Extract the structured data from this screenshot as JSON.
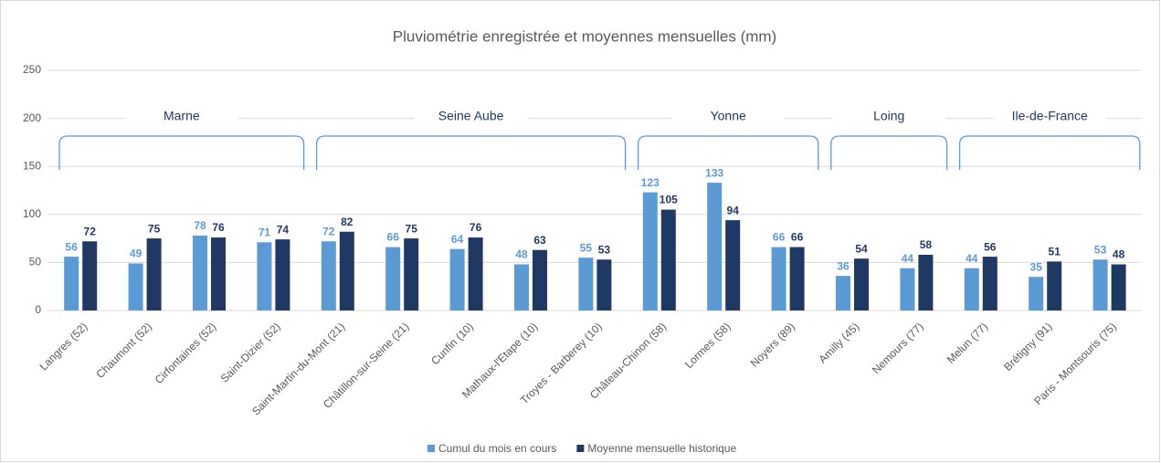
{
  "chart_data": {
    "type": "bar",
    "title": "Pluviométrie enregistrée et moyennes mensuelles (mm)",
    "categories": [
      "Langres (52)",
      "Chaumont (52)",
      "Cirfontaines (52)",
      "Saint-Dizier (52)",
      "Saint-Martin-du-Mont (21)",
      "Châtillon-sur-Seine (21)",
      "Cunfin (10)",
      "Mathaux-l'Etape (10)",
      "Troyes - Barberey (10)",
      "Château-Chinon (58)",
      "Lormes (58)",
      "Noyers (89)",
      "Amilly (45)",
      "Nemours (77)",
      "Melun (77)",
      "Brétigny (91)",
      "Paris - Montsouris (75)"
    ],
    "groups": [
      "Marne",
      "Seine Aube",
      "Yonne",
      "Loing",
      "Ile-de-France"
    ],
    "series": [
      {
        "name": "Cumul du mois en cours",
        "color": "#5b9bd5",
        "values": [
          56,
          49,
          78,
          71,
          72,
          66,
          64,
          48,
          55,
          123,
          133,
          66,
          36,
          44,
          44,
          35,
          53
        ]
      },
      {
        "name": "Moyenne mensuelle historique",
        "color": "#1f3864",
        "values": [
          72,
          75,
          76,
          74,
          82,
          75,
          76,
          63,
          53,
          105,
          94,
          66,
          54,
          58,
          56,
          51,
          48
        ]
      }
    ],
    "ylim": [
      0,
      250
    ],
    "yticks": [
      0,
      50,
      100,
      150,
      200,
      250
    ],
    "grid": true,
    "legend": "bottom"
  }
}
